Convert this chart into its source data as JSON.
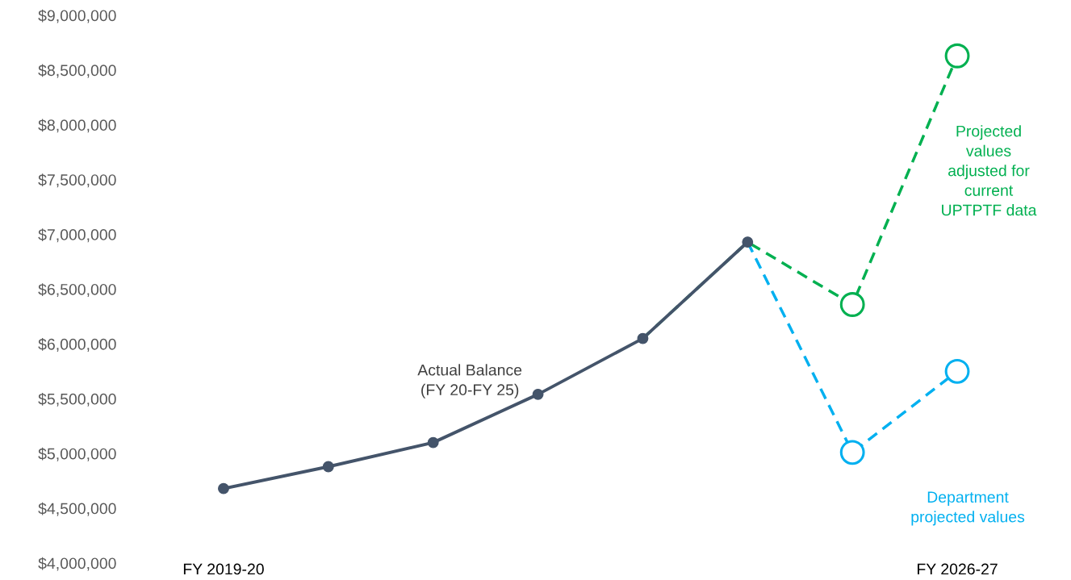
{
  "chart_data": {
    "type": "line",
    "categories": [
      "FY 2019-20",
      null,
      null,
      null,
      null,
      null,
      null,
      "FY 2026-27"
    ],
    "series": [
      {
        "name": "Actual Balance\n(FY 20-FY 25)",
        "color": "#44546a",
        "marker": "circle",
        "line_style": "solid",
        "values": [
          4680000,
          4880000,
          5100000,
          5540000,
          6050000,
          6930000,
          null,
          null
        ]
      },
      {
        "name": "Projected\nvalues\nadjusted for\ncurrent\nUPTPTF data",
        "color": "#00b050",
        "marker": "circle",
        "line_style": "dashed",
        "values": [
          null,
          null,
          null,
          null,
          6050000,
          6930000,
          6360000,
          8630000
        ]
      },
      {
        "name": "Department\nprojected values",
        "color": "#00b0f0",
        "marker": "circle",
        "line_style": "dashed",
        "values": [
          null,
          null,
          null,
          null,
          null,
          6930000,
          5010000,
          5750000
        ]
      }
    ],
    "ylim": [
      4000000,
      9000000
    ],
    "yticks": [
      {
        "value": 4000000,
        "label": "$4,000,000"
      },
      {
        "value": 4500000,
        "label": "$4,500,000"
      },
      {
        "value": 5000000,
        "label": "$5,000,000"
      },
      {
        "value": 5500000,
        "label": "$5,500,000"
      },
      {
        "value": 6000000,
        "label": "$6,000,000"
      },
      {
        "value": 6500000,
        "label": "$6,500,000"
      },
      {
        "value": 7000000,
        "label": "$7,000,000"
      },
      {
        "value": 7500000,
        "label": "$7,500,000"
      },
      {
        "value": 8000000,
        "label": "$8,000,000"
      },
      {
        "value": 8500000,
        "label": "$8,500,000"
      },
      {
        "value": 9000000,
        "label": "$9,000,000"
      }
    ],
    "grid": false,
    "legend": false
  }
}
